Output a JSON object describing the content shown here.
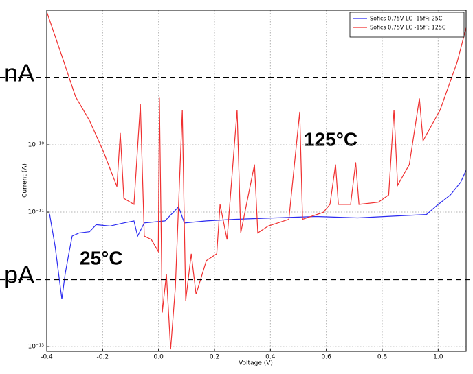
{
  "chart_data": {
    "type": "line",
    "x_label": "Voltage (V)",
    "y_label": "Current (A)",
    "log_y": true,
    "grid": true,
    "legend": "upper right",
    "xlim": [
      -0.4,
      1.1
    ],
    "xticks": [
      -0.4,
      -0.2,
      {
        "value": 0,
        "label": "0.0"
      },
      0.2,
      0.4,
      0.6,
      0.8,
      {
        "value": 1,
        "label": "1.0"
      }
    ],
    "ylim": [
      8.5e-14,
      1e-08
    ],
    "yticks": [
      {
        "value": 1e-13,
        "label": "10⁻¹³"
      },
      {
        "value": 1e-11,
        "label": "10⁻¹¹"
      },
      {
        "value": 1e-10,
        "label": "10⁻¹⁰"
      }
    ],
    "reference_lines": [
      {
        "value": 1e-09,
        "label": "nA"
      },
      {
        "value": 1e-12,
        "label": "pA"
      }
    ],
    "annotations": [
      {
        "text": "125°C",
        "color": "#e8161b"
      },
      {
        "text": "25°C",
        "color": "#4a7ab5"
      }
    ],
    "series": [
      {
        "name": "Sofics 0.75V LC -15fF: 25C",
        "color": "#2b2bf0",
        "x": [
          -0.39,
          -0.37,
          -0.346,
          -0.334,
          -0.321,
          -0.309,
          -0.284,
          -0.247,
          -0.223,
          -0.174,
          -0.124,
          -0.088,
          -0.075,
          -0.051,
          0.023,
          0.072,
          0.092,
          0.171,
          0.269,
          0.417,
          0.564,
          0.712,
          0.86,
          0.958,
          0.995,
          1.044,
          1.081,
          1.1
        ],
        "values": [
          9.4e-12,
          3.1e-12,
          5.1e-13,
          1.2e-12,
          2.4e-12,
          4.4e-12,
          4.9e-12,
          5.1e-12,
          6.5e-12,
          6.2e-12,
          6.9e-12,
          7.4e-12,
          4.4e-12,
          6.9e-12,
          7.4e-12,
          1.2e-11,
          6.9e-12,
          7.4e-12,
          7.8e-12,
          8.2e-12,
          8.6e-12,
          8.2e-12,
          8.8e-12,
          9.2e-12,
          1.25e-11,
          1.8e-11,
          2.8e-11,
          4.2e-11
        ]
      },
      {
        "name": "Sofics 0.75V LC -15fF: 125C",
        "color": "#f03030",
        "x": [
          -0.4,
          -0.346,
          -0.297,
          -0.247,
          -0.198,
          -0.149,
          -0.137,
          -0.124,
          -0.088,
          -0.065,
          -0.051,
          -0.026,
          -0.001,
          0.003,
          0.013,
          0.028,
          0.043,
          0.06,
          0.085,
          0.097,
          0.117,
          0.134,
          0.171,
          0.208,
          0.22,
          0.245,
          0.281,
          0.294,
          0.343,
          0.355,
          0.392,
          0.466,
          0.505,
          0.515,
          0.589,
          0.613,
          0.633,
          0.643,
          0.687,
          0.705,
          0.717,
          0.786,
          0.823,
          0.842,
          0.855,
          0.897,
          0.933,
          0.946,
          1.007,
          1.068,
          1.1
        ],
        "values": [
          9.5e-09,
          2.1e-09,
          5.2e-10,
          2.3e-10,
          8.1e-11,
          2.4e-11,
          1.5e-10,
          1.6e-11,
          1.3e-11,
          4e-10,
          4.4e-12,
          3.9e-12,
          2.6e-12,
          5e-10,
          3.2e-13,
          1.2e-12,
          9.1e-14,
          7.6e-13,
          3.3e-10,
          4.8e-13,
          2.4e-12,
          6e-13,
          1.9e-12,
          2.4e-12,
          1.3e-11,
          3.9e-12,
          3.3e-10,
          4.9e-12,
          5.1e-11,
          4.9e-12,
          6.2e-12,
          7.8e-12,
          3.1e-10,
          7.8e-12,
          9.9e-12,
          1.3e-11,
          5.1e-11,
          1.3e-11,
          1.3e-11,
          5.5e-11,
          1.3e-11,
          1.4e-11,
          1.8e-11,
          3.3e-10,
          2.5e-11,
          5.1e-11,
          4.9e-10,
          1.15e-10,
          3.3e-10,
          1.7e-09,
          5.5e-09
        ]
      }
    ]
  }
}
